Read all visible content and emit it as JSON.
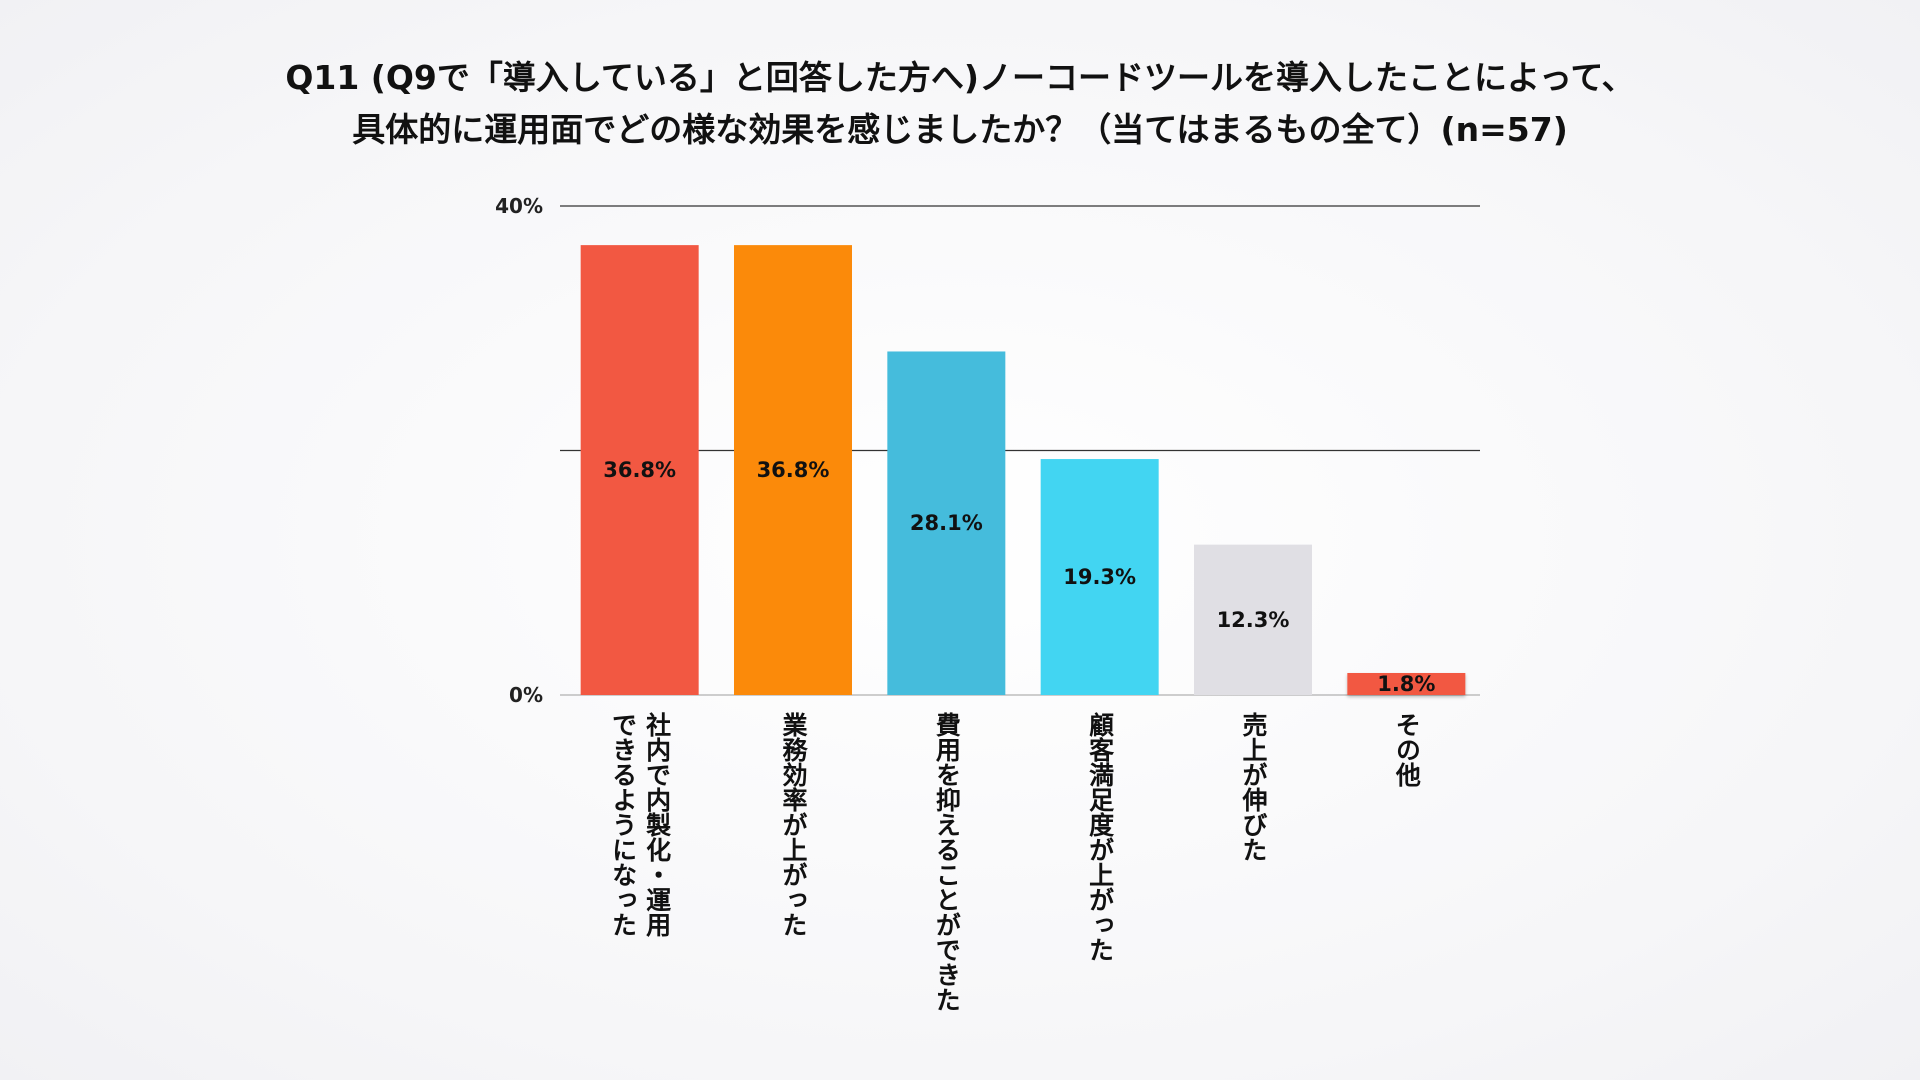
{
  "title": {
    "line1": "Q11 (Q9で「導入している」と回答した方へ)ノーコードツールを導入したことによって、",
    "line2": "具体的に運用面でどの様な効果を感じましたか？（当てはまるもの全て）(n=57)"
  },
  "chart_data": {
    "type": "bar",
    "categories": [
      [
        "社内で内製化・運用",
        "できるようになった"
      ],
      [
        "業務効率が上がった"
      ],
      [
        "費用を抑えることができた"
      ],
      [
        "顧客満足度が上がった"
      ],
      [
        "売上が伸びた"
      ],
      [
        "その他"
      ]
    ],
    "values": [
      36.8,
      36.8,
      28.1,
      19.3,
      12.3,
      1.8
    ],
    "value_labels": [
      "36.8%",
      "36.8%",
      "28.1%",
      "19.3%",
      "12.3%",
      "1.8%"
    ],
    "colors": [
      "#f25842",
      "#fb8a0a",
      "#45bcdc",
      "#42d5f2",
      "#e0dfe4",
      "#f25842"
    ],
    "ylim": [
      0,
      40
    ],
    "yticks": [
      {
        "value": 40,
        "label": "40%"
      },
      {
        "value": 20,
        "label": ""
      },
      {
        "value": 0,
        "label": "0%"
      }
    ],
    "grid": true,
    "xlabel": "",
    "ylabel": ""
  }
}
